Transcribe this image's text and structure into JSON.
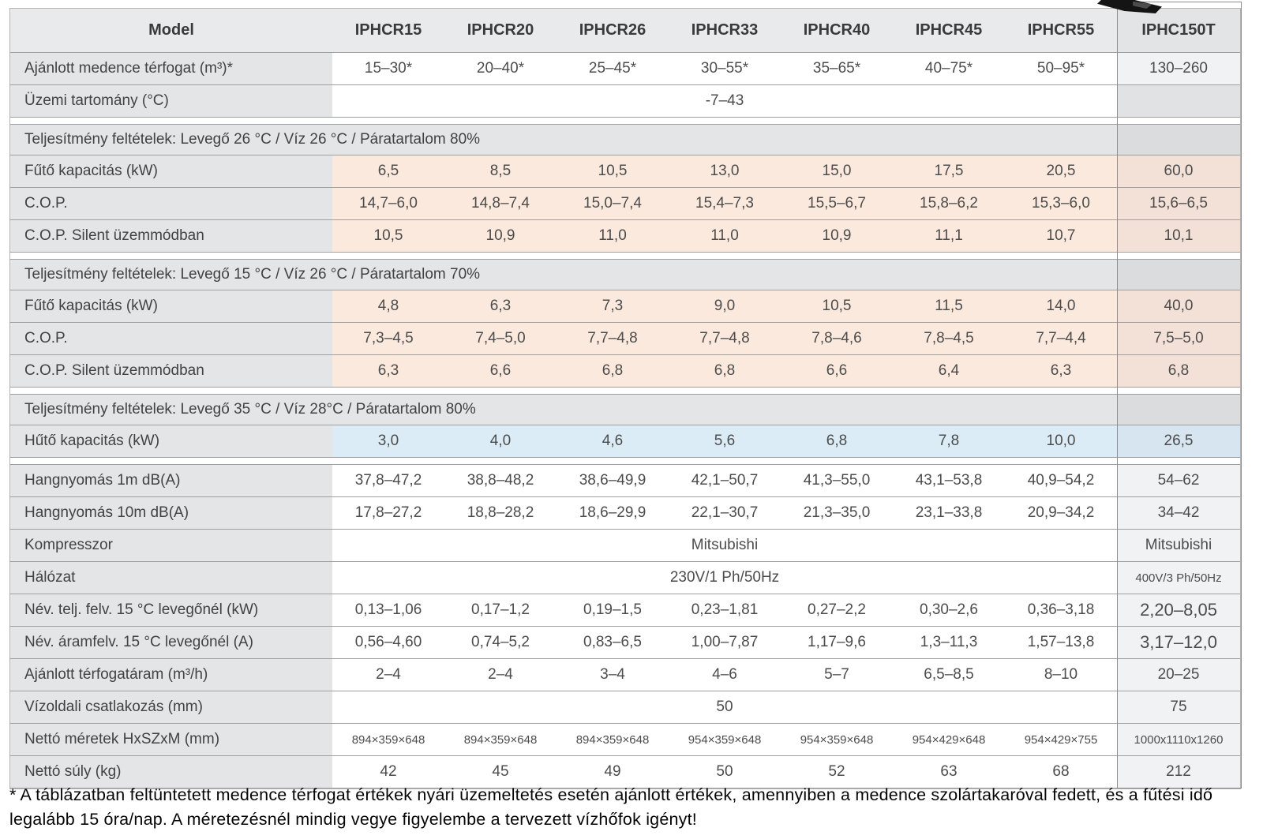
{
  "columns": [
    "Model",
    "IPHCR15",
    "IPHCR20",
    "IPHCR26",
    "IPHCR33",
    "IPHCR40",
    "IPHCR45",
    "IPHCR55",
    "IPHC150T"
  ],
  "rows": [
    {
      "type": "data",
      "bg": "white",
      "label": "Ajánlott medence térfogat (m³)*",
      "values": [
        "15–30*",
        "20–40*",
        "25–45*",
        "30–55*",
        "35–65*",
        "40–75*",
        "50–95*"
      ],
      "last": "130–260"
    },
    {
      "type": "span",
      "bg": "white",
      "label": "Üzemi tartomány (°C)",
      "span": "-7–43",
      "last": "",
      "last_bg": "gray"
    },
    {
      "type": "gap"
    },
    {
      "type": "section",
      "label": "Teljesítmény feltételek: Levegő 26 °C / Víz 26 °C / Páratartalom 80%"
    },
    {
      "type": "data",
      "bg": "peach",
      "label": "Fűtő kapacitás (kW)",
      "values": [
        "6,5",
        "8,5",
        "10,5",
        "13,0",
        "15,0",
        "17,5",
        "20,5"
      ],
      "last": "60,0"
    },
    {
      "type": "data",
      "bg": "peach",
      "label": "C.O.P.",
      "values": [
        "14,7–6,0",
        "14,8–7,4",
        "15,0–7,4",
        "15,4–7,3",
        "15,5–6,7",
        "15,8–6,2",
        "15,3–6,0"
      ],
      "last": "15,6–6,5"
    },
    {
      "type": "data",
      "bg": "peach",
      "label": "C.O.P. Silent üzemmódban",
      "values": [
        "10,5",
        "10,9",
        "11,0",
        "11,0",
        "10,9",
        "11,1",
        "10,7"
      ],
      "last": "10,1"
    },
    {
      "type": "gap"
    },
    {
      "type": "section",
      "label": "Teljesítmény feltételek: Levegő 15 °C / Víz 26 °C / Páratartalom 70%"
    },
    {
      "type": "data",
      "bg": "peach",
      "label": "Fűtő kapacitás (kW)",
      "values": [
        "4,8",
        "6,3",
        "7,3",
        "9,0",
        "10,5",
        "11,5",
        "14,0"
      ],
      "last": "40,0"
    },
    {
      "type": "data",
      "bg": "peach",
      "label": "C.O.P.",
      "values": [
        "7,3–4,5",
        "7,4–5,0",
        "7,7–4,8",
        "7,7–4,8",
        "7,8–4,6",
        "7,8–4,5",
        "7,7–4,4"
      ],
      "last": "7,5–5,0"
    },
    {
      "type": "data",
      "bg": "peach",
      "label": "C.O.P. Silent üzemmódban",
      "values": [
        "6,3",
        "6,6",
        "6,8",
        "6,8",
        "6,6",
        "6,4",
        "6,3"
      ],
      "last": "6,8"
    },
    {
      "type": "gap"
    },
    {
      "type": "section",
      "label": "Teljesítmény feltételek: Levegő 35 °C / Víz 28°C / Páratartalom 80%"
    },
    {
      "type": "data",
      "bg": "blue",
      "label": "Hűtő kapacitás (kW)",
      "values": [
        "3,0",
        "4,0",
        "4,6",
        "5,6",
        "6,8",
        "7,8",
        "10,0"
      ],
      "last": "26,5"
    },
    {
      "type": "gap"
    },
    {
      "type": "data",
      "bg": "white",
      "label": "Hangnyomás 1m dB(A)",
      "values": [
        "37,8–47,2",
        "38,8–48,2",
        "38,6–49,9",
        "42,1–50,7",
        "41,3–55,0",
        "43,1–53,8",
        "40,9–54,2"
      ],
      "last": "54–62"
    },
    {
      "type": "data",
      "bg": "white",
      "label": "Hangnyomás 10m dB(A)",
      "values": [
        "17,8–27,2",
        "18,8–28,2",
        "18,6–29,9",
        "22,1–30,7",
        "21,3–35,0",
        "23,1–33,8",
        "20,9–34,2"
      ],
      "last": "34–42"
    },
    {
      "type": "span",
      "bg": "white",
      "label": "Kompresszor",
      "span": "Mitsubishi",
      "last": "Mitsubishi"
    },
    {
      "type": "span",
      "bg": "white",
      "label": "Hálózat",
      "span": "230V/1 Ph/50Hz",
      "last": "400V/3 Ph/50Hz",
      "last_style": "small"
    },
    {
      "type": "data",
      "bg": "white",
      "label": "Név. telj. felv. 15 °C levegőnél (kW)",
      "values": [
        "0,13–1,06",
        "0,17–1,2",
        "0,19–1,5",
        "0,23–1,81",
        "0,27–2,2",
        "0,30–2,6",
        "0,36–3,18"
      ],
      "last": "2,20–8,05",
      "last_style": "large"
    },
    {
      "type": "data",
      "bg": "white",
      "label": "Név. áramfelv. 15 °C levegőnél (A)",
      "values": [
        "0,56–4,60",
        "0,74–5,2",
        "0,83–6,5",
        "1,00–7,87",
        "1,17–9,6",
        "1,3–11,3",
        "1,57–13,8"
      ],
      "last": "3,17–12,0",
      "last_style": "large"
    },
    {
      "type": "data",
      "bg": "white",
      "label": "Ajánlott térfogatáram (m³/h)",
      "values": [
        "2–4",
        "2–4",
        "3–4",
        "4–6",
        "5–7",
        "6,5–8,5",
        "8–10"
      ],
      "last": "20–25"
    },
    {
      "type": "span",
      "bg": "white",
      "label": "Vízoldali csatlakozás (mm)",
      "span": "50",
      "last": "75"
    },
    {
      "type": "data",
      "bg": "white",
      "label": "Nettó méretek HxSZxM (mm)",
      "value_style": "small",
      "values": [
        "894×359×648",
        "894×359×648",
        "894×359×648",
        "954×359×648",
        "954×359×648",
        "954×429×648",
        "954×429×755"
      ],
      "last": "1000x1110x1260",
      "last_style": "small"
    },
    {
      "type": "data",
      "bg": "white",
      "label": "Nettó súly (kg)",
      "values": [
        "42",
        "45",
        "49",
        "50",
        "52",
        "63",
        "68"
      ],
      "last": "212"
    }
  ],
  "footnote": "* A táblázatban feltüntetett medence térfogat értékek nyári üzemeltetés esetén ajánlott értékek, amennyiben a medence szolártakaróval fedett, és a fűtési idő legalább 15 óra/nap. A méretezésnél mindig vegye figyelembe a tervezett vízhőfok igényt!",
  "colors": {
    "peach_highlight": "#fce9dd",
    "blue_highlight": "#dcecf7",
    "header_gray": "#e9eaec",
    "label_gray": "#e3e5e7",
    "row_separator": "#9f9f9f",
    "outlined_column_border": "#8d8d8d"
  }
}
